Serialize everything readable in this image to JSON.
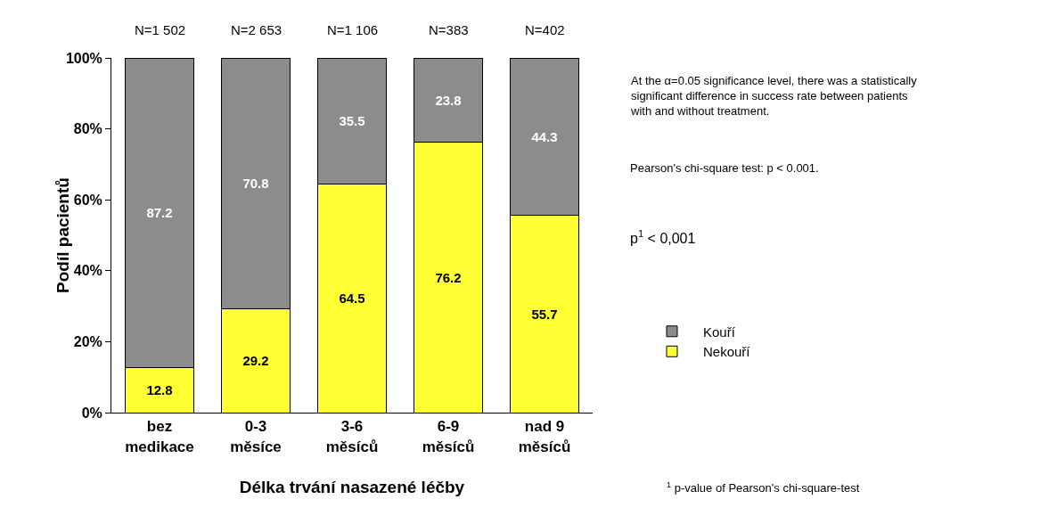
{
  "chart_data": {
    "type": "bar",
    "stacked": true,
    "xlabel": "Délka trvání nasazené léčby",
    "ylabel": "Podíl pacientů",
    "categories": [
      "bez\nmedikace",
      "0-3\nměsíce",
      "3-6\nměsíců",
      "6-9\nměsíců",
      "nad 9\nměsíců"
    ],
    "series": [
      {
        "name": "Nekouří",
        "color": "#ffff33",
        "values": [
          12.8,
          29.2,
          64.5,
          76.2,
          55.7
        ]
      },
      {
        "name": "Kouří",
        "color": "#8c8c8c",
        "values": [
          87.2,
          70.8,
          35.5,
          23.8,
          44.3
        ]
      }
    ],
    "data_labels": true,
    "legend": "right",
    "grid": false,
    "ylim": [
      0,
      100
    ],
    "yticks": [
      {
        "value": 0,
        "label": "0%"
      },
      {
        "value": 20,
        "label": "20%"
      },
      {
        "value": 40,
        "label": "40%"
      },
      {
        "value": 60,
        "label": "60%"
      },
      {
        "value": 80,
        "label": "80%"
      },
      {
        "value": 100,
        "label": "100%"
      }
    ],
    "annotations": [
      "N=1 502",
      "N=2 653",
      "N=1 106",
      "N=383",
      "N=402",
      "At the α=0.05 significance level, there was a statistically\nsignificant difference in success rate between patients\nwith and without treatment.",
      "Pearson's chi-square test: p < 0.001.",
      "p$^{1}$ < 0,001",
      "$^{1}$ p-value of Pearson's chi-square-test"
    ]
  }
}
